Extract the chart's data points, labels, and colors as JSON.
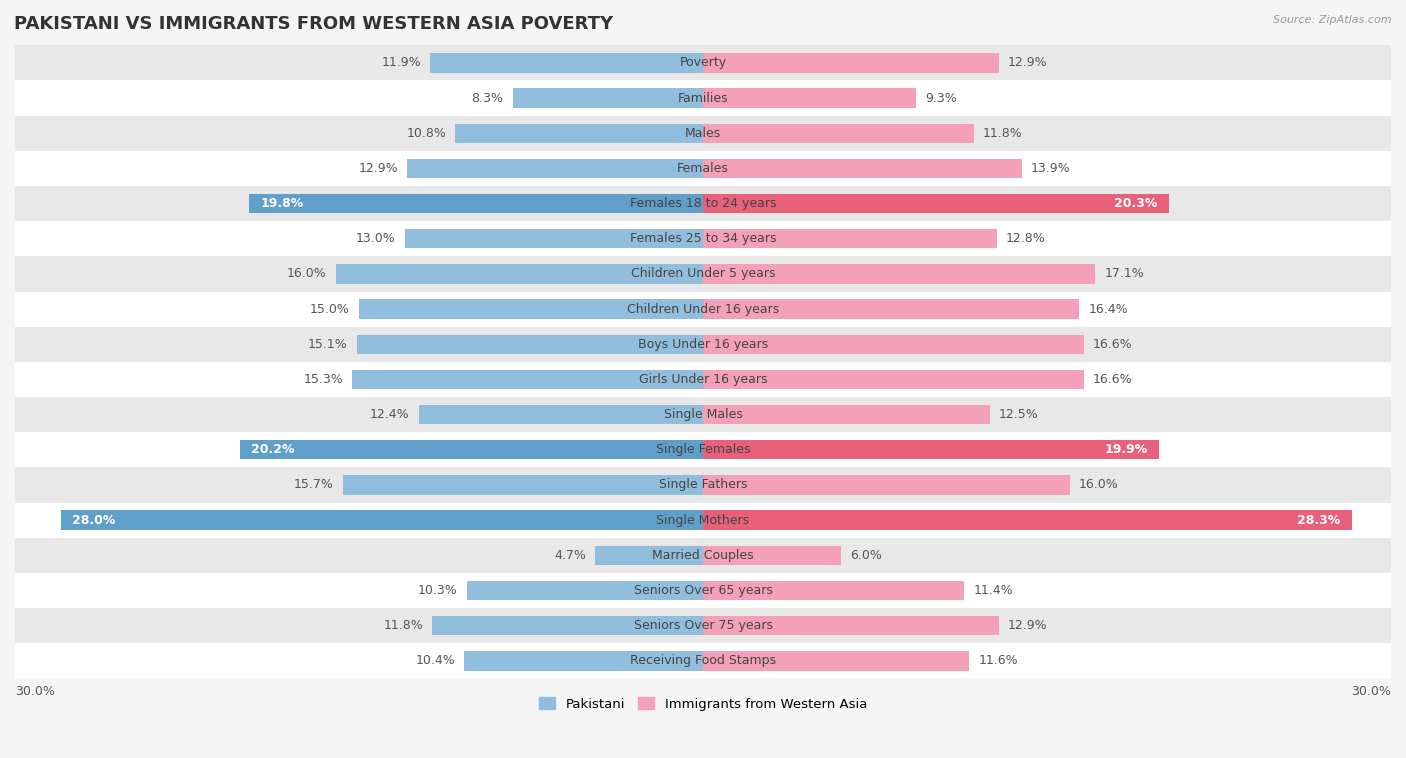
{
  "title": "PAKISTANI VS IMMIGRANTS FROM WESTERN ASIA POVERTY",
  "source": "Source: ZipAtlas.com",
  "categories": [
    "Poverty",
    "Families",
    "Males",
    "Females",
    "Females 18 to 24 years",
    "Females 25 to 34 years",
    "Children Under 5 years",
    "Children Under 16 years",
    "Boys Under 16 years",
    "Girls Under 16 years",
    "Single Males",
    "Single Females",
    "Single Fathers",
    "Single Mothers",
    "Married Couples",
    "Seniors Over 65 years",
    "Seniors Over 75 years",
    "Receiving Food Stamps"
  ],
  "pakistani": [
    11.9,
    8.3,
    10.8,
    12.9,
    19.8,
    13.0,
    16.0,
    15.0,
    15.1,
    15.3,
    12.4,
    20.2,
    15.7,
    28.0,
    4.7,
    10.3,
    11.8,
    10.4
  ],
  "western_asia": [
    12.9,
    9.3,
    11.8,
    13.9,
    20.3,
    12.8,
    17.1,
    16.4,
    16.6,
    16.6,
    12.5,
    19.9,
    16.0,
    28.3,
    6.0,
    11.4,
    12.9,
    11.6
  ],
  "pakistani_color": "#92bedd",
  "western_asia_color": "#f4a0b8",
  "pakistani_highlight_color": "#5f9fc9",
  "western_asia_highlight_color": "#e8607a",
  "highlight_rows": [
    4,
    11,
    13
  ],
  "bar_height": 0.55,
  "xlim": [
    -30,
    30
  ],
  "legend_pakistani": "Pakistani",
  "legend_western_asia": "Immigrants from Western Asia",
  "bg_color": "#f5f5f5",
  "row_bg_light": "#ffffff",
  "row_bg_dark": "#e8e8e8",
  "title_fontsize": 13,
  "value_fontsize": 9,
  "category_fontsize": 9
}
